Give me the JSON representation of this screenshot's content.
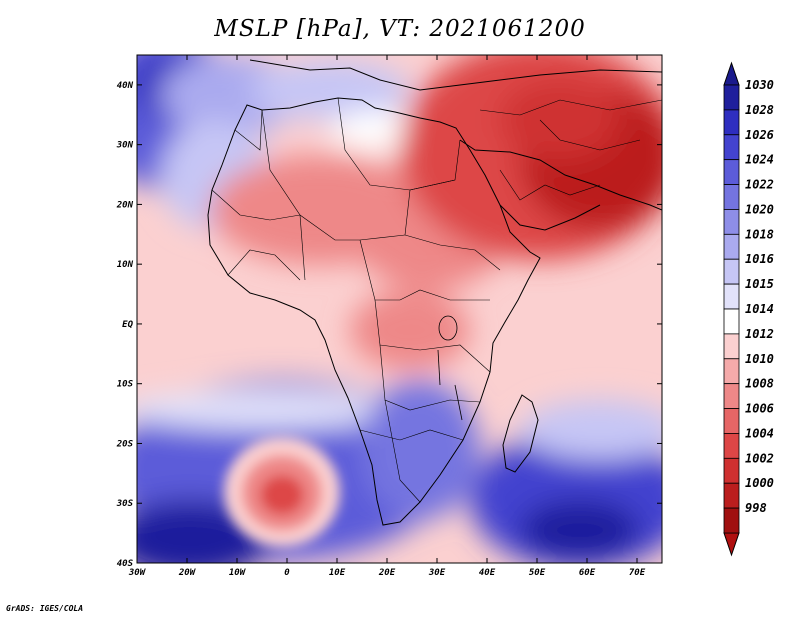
{
  "title": "MSLP [hPa], VT: 2021061200",
  "credit": "GrADS: IGES/COLA",
  "map": {
    "lon_ticks": [
      "30W",
      "20W",
      "10W",
      "0",
      "10E",
      "20E",
      "30E",
      "40E",
      "50E",
      "60E",
      "70E"
    ],
    "lat_ticks": [
      "40N",
      "30N",
      "20N",
      "10N",
      "EQ",
      "10S",
      "20S",
      "30S",
      "40S"
    ],
    "lon_range": [
      -30,
      75
    ],
    "lat_range": [
      -40,
      45
    ]
  },
  "colorbar": {
    "levels": [
      "1030",
      "1028",
      "1026",
      "1024",
      "1022",
      "1020",
      "1018",
      "1016",
      "1015",
      "1014",
      "1012",
      "1010",
      "1008",
      "1006",
      "1004",
      "1002",
      "1000",
      "998"
    ],
    "colors": [
      "#1f1f9c",
      "#2e2ec0",
      "#4343cf",
      "#5c5cd9",
      "#7474e0",
      "#8e8ee8",
      "#aaaaef",
      "#c6c6f5",
      "#e2e2fa",
      "#ffffff",
      "#fbd0d0",
      "#f5aaaa",
      "#ee8888",
      "#e66666",
      "#dd4646",
      "#cf3030",
      "#bb1e1e",
      "#a01010"
    ],
    "top_arrow_color": "#1a1a8c",
    "bottom_arrow_color": "#b01010"
  }
}
